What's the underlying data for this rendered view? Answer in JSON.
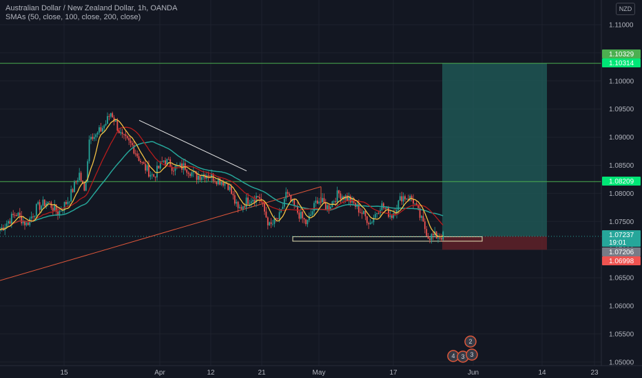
{
  "header": {
    "title": "Australian Dollar / New Zealand Dollar, 1h, OANDA",
    "indicators": "SMAs (50, close, 100, close, 200, close)"
  },
  "currency_badge": "NZD",
  "colors": {
    "background": "#131722",
    "axis_text": "#b2b5be",
    "green_level": "#4caf50",
    "up_candle": "#26a69a",
    "down_candle": "#ef5350",
    "sma50": "#f6c344",
    "sma100": "#b71c1c",
    "sma200": "#26a69a",
    "target_zone": "#1f5a58",
    "stop_zone": "#5b2028",
    "trendline": "#e0573a"
  },
  "chart_data": {
    "type": "candlestick",
    "symbol": "AUD/NZD",
    "timeframe": "1h",
    "x_ticks": [
      "15",
      "Apr",
      "12",
      "21",
      "May",
      "17",
      "Jun",
      "14",
      "23"
    ],
    "y_ticks": [
      "1.11000",
      "1.10500",
      "1.10000",
      "1.09500",
      "1.09000",
      "1.08500",
      "1.08000",
      "1.07500",
      "1.07000",
      "1.06500",
      "1.06000",
      "1.05500",
      "1.05000"
    ],
    "ylim": [
      1.0495,
      1.1125
    ],
    "price_labels": [
      {
        "text": "1.10329",
        "value": 1.10329,
        "color": "#4caf50"
      },
      {
        "text": "1.10314",
        "value": 1.10314,
        "color": "#00e676"
      },
      {
        "text": "1.08209",
        "value": 1.08209,
        "color": "#00e676"
      },
      {
        "text": "1.07237",
        "value": 1.07237,
        "color": "#26a69a"
      },
      {
        "text": "19:01",
        "value": 1.07237,
        "color": "#26a69a"
      },
      {
        "text": "1.07206",
        "value": 1.07206,
        "color": "#787b86"
      },
      {
        "text": "1.06998",
        "value": 1.06998,
        "color": "#ef5350"
      }
    ],
    "horizontal_levels": [
      1.10314,
      1.08209
    ],
    "support_zone": [
      1.0715,
      1.0723
    ],
    "position": {
      "type": "long",
      "entry": 1.07237,
      "target": 1.10314,
      "stop": 1.06998
    },
    "close_series": [
      {
        "time": "Mar 8",
        "price": 1.0735
      },
      {
        "time": "Mar 11",
        "price": 1.0765
      },
      {
        "time": "Mar 13",
        "price": 1.0745
      },
      {
        "time": "Mar 15",
        "price": 1.0775
      },
      {
        "time": "Mar 17",
        "price": 1.0785
      },
      {
        "time": "Mar 19",
        "price": 1.0765
      },
      {
        "time": "Mar 21",
        "price": 1.079
      },
      {
        "time": "Mar 23",
        "price": 1.0835
      },
      {
        "time": "Mar 24",
        "price": 1.08
      },
      {
        "time": "Mar 25",
        "price": 1.091
      },
      {
        "time": "Mar 26",
        "price": 1.09
      },
      {
        "time": "Mar 28",
        "price": 1.0925
      },
      {
        "time": "Mar 29",
        "price": 1.0945
      },
      {
        "time": "Mar 31",
        "price": 1.09
      },
      {
        "time": "Apr 2",
        "price": 1.0885
      },
      {
        "time": "Apr 4",
        "price": 1.085
      },
      {
        "time": "Apr 6",
        "price": 1.083
      },
      {
        "time": "Apr 8",
        "price": 1.086
      },
      {
        "time": "Apr 10",
        "price": 1.0845
      },
      {
        "time": "Apr 12",
        "price": 1.0848
      },
      {
        "time": "Apr 14",
        "price": 1.083
      },
      {
        "time": "Apr 16",
        "price": 1.0835
      },
      {
        "time": "Apr 18",
        "price": 1.0825
      },
      {
        "time": "Apr 20",
        "price": 1.0818
      },
      {
        "time": "Apr 22",
        "price": 1.077
      },
      {
        "time": "Apr 24",
        "price": 1.079
      },
      {
        "time": "Apr 26",
        "price": 1.0795
      },
      {
        "time": "Apr 28",
        "price": 1.074
      },
      {
        "time": "Apr 30",
        "price": 1.076
      },
      {
        "time": "May 1",
        "price": 1.08
      },
      {
        "time": "May 3",
        "price": 1.077
      },
      {
        "time": "May 5",
        "price": 1.0745
      },
      {
        "time": "May 7",
        "price": 1.079
      },
      {
        "time": "May 9",
        "price": 1.0775
      },
      {
        "time": "May 11",
        "price": 1.08
      },
      {
        "time": "May 13",
        "price": 1.079
      },
      {
        "time": "May 15",
        "price": 1.077
      },
      {
        "time": "May 17",
        "price": 1.0748
      },
      {
        "time": "May 19",
        "price": 1.078
      },
      {
        "time": "May 21",
        "price": 1.076
      },
      {
        "time": "May 23",
        "price": 1.0795
      },
      {
        "time": "May 25",
        "price": 1.079
      },
      {
        "time": "May 27",
        "price": 1.0745
      },
      {
        "time": "May 28",
        "price": 1.0724
      }
    ],
    "event_markers": [
      "2",
      "4",
      "3",
      "3"
    ]
  }
}
